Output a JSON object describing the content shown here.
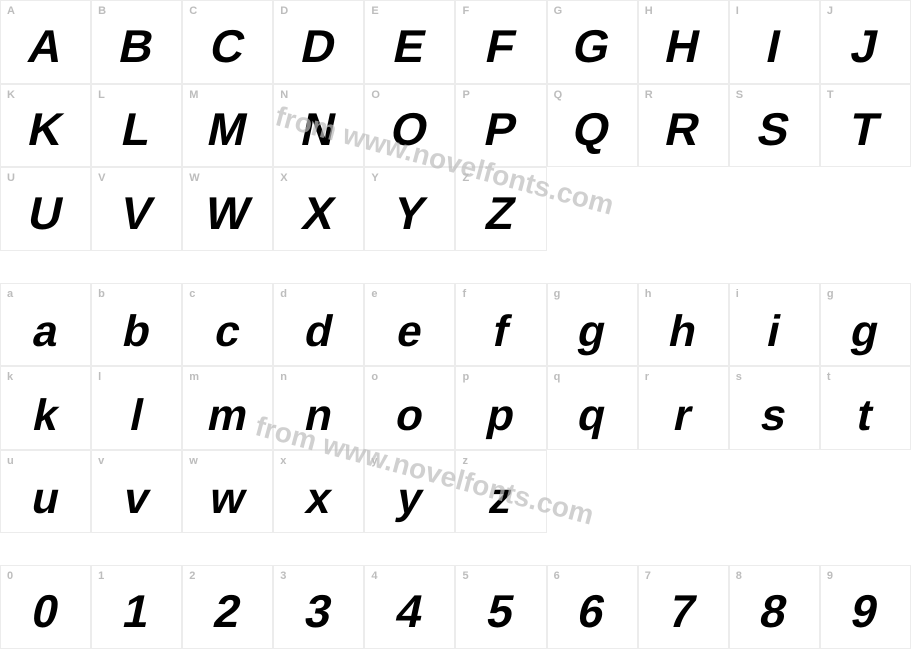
{
  "chart": {
    "type": "font-character-map",
    "watermark_text": "from www.novelfonts.com",
    "watermark_color": "#bdbdbd",
    "watermark_fontsize": 28,
    "watermark_angle": 15,
    "cell_border_color": "#ececec",
    "label_color": "#bdbdbd",
    "label_fontsize": 11,
    "glyph_color": "#000000",
    "glyph_fontsize": 46,
    "glyph_skew_deg": -12,
    "background_color": "#ffffff",
    "columns": 10,
    "rows": [
      {
        "cells": [
          {
            "label": "A",
            "glyph": "A"
          },
          {
            "label": "B",
            "glyph": "B"
          },
          {
            "label": "C",
            "glyph": "C"
          },
          {
            "label": "D",
            "glyph": "D"
          },
          {
            "label": "E",
            "glyph": "E"
          },
          {
            "label": "F",
            "glyph": "F"
          },
          {
            "label": "G",
            "glyph": "G"
          },
          {
            "label": "H",
            "glyph": "H"
          },
          {
            "label": "I",
            "glyph": "I"
          },
          {
            "label": "J",
            "glyph": "J"
          }
        ]
      },
      {
        "cells": [
          {
            "label": "K",
            "glyph": "K"
          },
          {
            "label": "L",
            "glyph": "L"
          },
          {
            "label": "M",
            "glyph": "M"
          },
          {
            "label": "N",
            "glyph": "N"
          },
          {
            "label": "O",
            "glyph": "O"
          },
          {
            "label": "P",
            "glyph": "P"
          },
          {
            "label": "Q",
            "glyph": "Q"
          },
          {
            "label": "R",
            "glyph": "R"
          },
          {
            "label": "S",
            "glyph": "S"
          },
          {
            "label": "T",
            "glyph": "T"
          }
        ]
      },
      {
        "cells": [
          {
            "label": "U",
            "glyph": "U"
          },
          {
            "label": "V",
            "glyph": "V"
          },
          {
            "label": "W",
            "glyph": "W"
          },
          {
            "label": "X",
            "glyph": "X"
          },
          {
            "label": "Y",
            "glyph": "Y"
          },
          {
            "label": "Z",
            "glyph": "Z"
          },
          {
            "empty": true
          },
          {
            "empty": true
          },
          {
            "empty": true
          },
          {
            "empty": true
          }
        ]
      },
      {
        "cells": [
          {
            "label": "a",
            "glyph": "a",
            "lower": true
          },
          {
            "label": "b",
            "glyph": "b",
            "lower": true
          },
          {
            "label": "c",
            "glyph": "c",
            "lower": true
          },
          {
            "label": "d",
            "glyph": "d",
            "lower": true
          },
          {
            "label": "e",
            "glyph": "e",
            "lower": true
          },
          {
            "label": "f",
            "glyph": "f",
            "lower": true
          },
          {
            "label": "g",
            "glyph": "g",
            "lower": true
          },
          {
            "label": "h",
            "glyph": "h",
            "lower": true
          },
          {
            "label": "i",
            "glyph": "i",
            "lower": true
          },
          {
            "label": "g",
            "glyph": "g",
            "lower": true
          }
        ]
      },
      {
        "cells": [
          {
            "label": "k",
            "glyph": "k",
            "lower": true
          },
          {
            "label": "l",
            "glyph": "l",
            "lower": true
          },
          {
            "label": "m",
            "glyph": "m",
            "lower": true
          },
          {
            "label": "n",
            "glyph": "n",
            "lower": true
          },
          {
            "label": "o",
            "glyph": "o",
            "lower": true
          },
          {
            "label": "p",
            "glyph": "p",
            "lower": true
          },
          {
            "label": "q",
            "glyph": "q",
            "lower": true
          },
          {
            "label": "r",
            "glyph": "r",
            "lower": true
          },
          {
            "label": "s",
            "glyph": "s",
            "lower": true
          },
          {
            "label": "t",
            "glyph": "t",
            "lower": true
          }
        ]
      },
      {
        "cells": [
          {
            "label": "u",
            "glyph": "u",
            "lower": true
          },
          {
            "label": "v",
            "glyph": "v",
            "lower": true
          },
          {
            "label": "w",
            "glyph": "w",
            "lower": true
          },
          {
            "label": "x",
            "glyph": "x",
            "lower": true
          },
          {
            "label": "y",
            "glyph": "y",
            "lower": true
          },
          {
            "label": "z",
            "glyph": "z",
            "lower": true
          },
          {
            "empty": true
          },
          {
            "empty": true
          },
          {
            "empty": true
          },
          {
            "empty": true
          }
        ]
      },
      {
        "cells": [
          {
            "label": "0",
            "glyph": "0",
            "digit": true
          },
          {
            "label": "1",
            "glyph": "1",
            "digit": true
          },
          {
            "label": "2",
            "glyph": "2",
            "digit": true
          },
          {
            "label": "3",
            "glyph": "3",
            "digit": true
          },
          {
            "label": "4",
            "glyph": "4",
            "digit": true
          },
          {
            "label": "5",
            "glyph": "5",
            "digit": true
          },
          {
            "label": "6",
            "glyph": "6",
            "digit": true
          },
          {
            "label": "7",
            "glyph": "7",
            "digit": true
          },
          {
            "label": "8",
            "glyph": "8",
            "digit": true
          },
          {
            "label": "9",
            "glyph": "9",
            "digit": true
          }
        ]
      }
    ]
  }
}
